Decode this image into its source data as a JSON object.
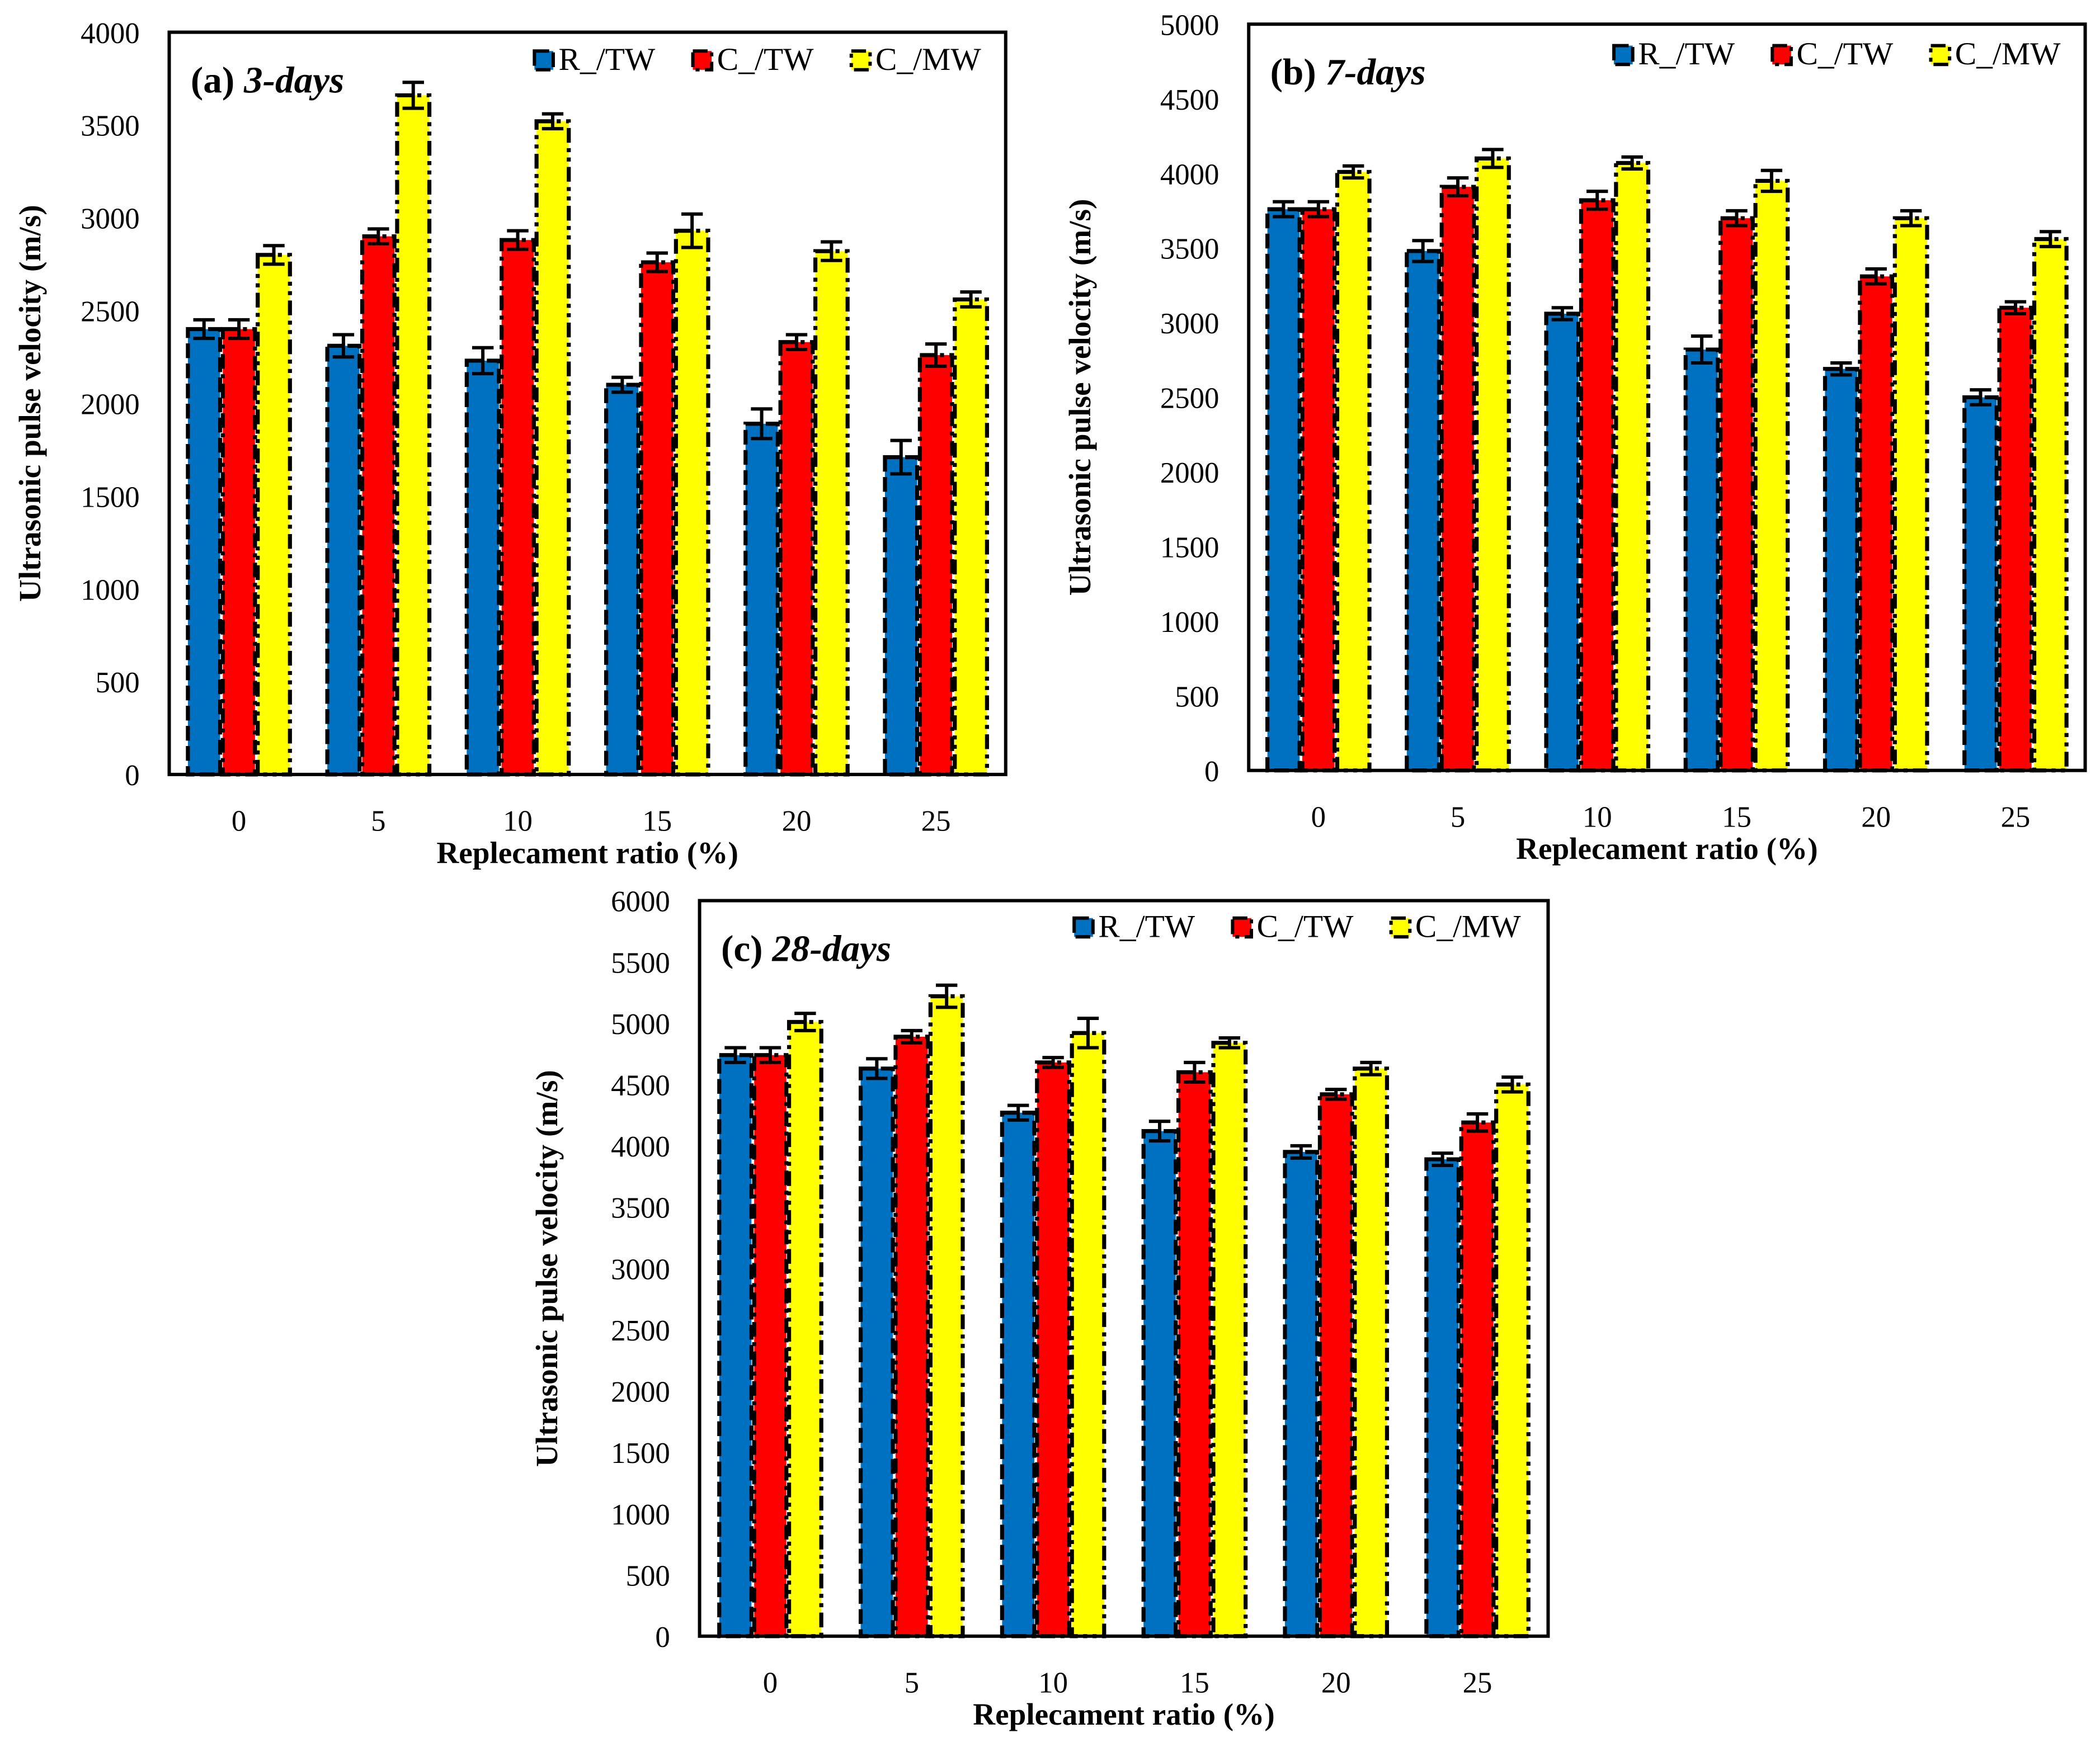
{
  "colors": {
    "R_/TW": "#0070C0",
    "C_/TW": "#FF0000",
    "C_/MW": "#FFFF00"
  },
  "chart_data": [
    {
      "type": "bar",
      "panel": "(a)",
      "title_italic": "3-days",
      "xlabel": "Replecament ratio (%)",
      "ylabel": "Ultrasonic pulse velocity (m/s)",
      "categories": [
        "0",
        "5",
        "10",
        "15",
        "20",
        "25"
      ],
      "ylim": [
        0,
        4000
      ],
      "yticks": [
        0,
        500,
        1000,
        1500,
        2000,
        2500,
        3000,
        3500,
        4000
      ],
      "legend_position": "top-right",
      "series": [
        {
          "name": "R_/TW",
          "values": [
            2400,
            2310,
            2230,
            2100,
            1890,
            1710
          ],
          "errors": [
            50,
            60,
            70,
            40,
            80,
            90
          ]
        },
        {
          "name": "C_/TW",
          "values": [
            2400,
            2900,
            2880,
            2760,
            2330,
            2260
          ],
          "errors": [
            50,
            40,
            50,
            50,
            40,
            60
          ]
        },
        {
          "name": "C_/MW",
          "values": [
            2800,
            3660,
            3520,
            2930,
            2820,
            2560
          ],
          "errors": [
            50,
            70,
            40,
            90,
            50,
            40
          ]
        }
      ]
    },
    {
      "type": "bar",
      "panel": "(b)",
      "title_italic": "7-days",
      "xlabel": "Replecament ratio (%)",
      "ylabel": "Ultrasonic pulse velocity (m/s)",
      "categories": [
        "0",
        "5",
        "10",
        "15",
        "20",
        "25"
      ],
      "ylim": [
        0,
        5000
      ],
      "yticks": [
        0,
        500,
        1000,
        1500,
        2000,
        2500,
        3000,
        3500,
        4000,
        4500,
        5000
      ],
      "legend_position": "top-right",
      "series": [
        {
          "name": "R_/TW",
          "values": [
            3760,
            3480,
            3060,
            2820,
            2690,
            2500
          ],
          "errors": [
            50,
            70,
            40,
            90,
            40,
            50
          ]
        },
        {
          "name": "C_/TW",
          "values": [
            3760,
            3910,
            3820,
            3700,
            3310,
            3100
          ],
          "errors": [
            50,
            60,
            60,
            50,
            50,
            40
          ]
        },
        {
          "name": "C_/MW",
          "values": [
            4010,
            4100,
            4070,
            3950,
            3700,
            3560
          ],
          "errors": [
            40,
            60,
            40,
            70,
            50,
            50
          ]
        }
      ]
    },
    {
      "type": "bar",
      "panel": "(c)",
      "title_italic": "28-days",
      "xlabel": "Replecament ratio (%)",
      "ylabel": "Ultrasonic pulse velocity (m/s)",
      "categories": [
        "0",
        "5",
        "10",
        "15",
        "20",
        "25"
      ],
      "ylim": [
        0,
        6000
      ],
      "yticks": [
        0,
        500,
        1000,
        1500,
        2000,
        2500,
        3000,
        3500,
        4000,
        4500,
        5000,
        5500,
        6000
      ],
      "legend_position": "top-right",
      "series": [
        {
          "name": "R_/TW",
          "values": [
            4740,
            4630,
            4270,
            4120,
            3950,
            3890
          ],
          "errors": [
            60,
            80,
            60,
            80,
            50,
            50
          ]
        },
        {
          "name": "C_/TW",
          "values": [
            4740,
            4890,
            4680,
            4600,
            4420,
            4190
          ],
          "errors": [
            60,
            50,
            40,
            80,
            40,
            70
          ]
        },
        {
          "name": "C_/MW",
          "values": [
            5010,
            5220,
            4920,
            4840,
            4630,
            4500
          ],
          "errors": [
            70,
            90,
            120,
            40,
            50,
            60
          ]
        }
      ]
    }
  ]
}
